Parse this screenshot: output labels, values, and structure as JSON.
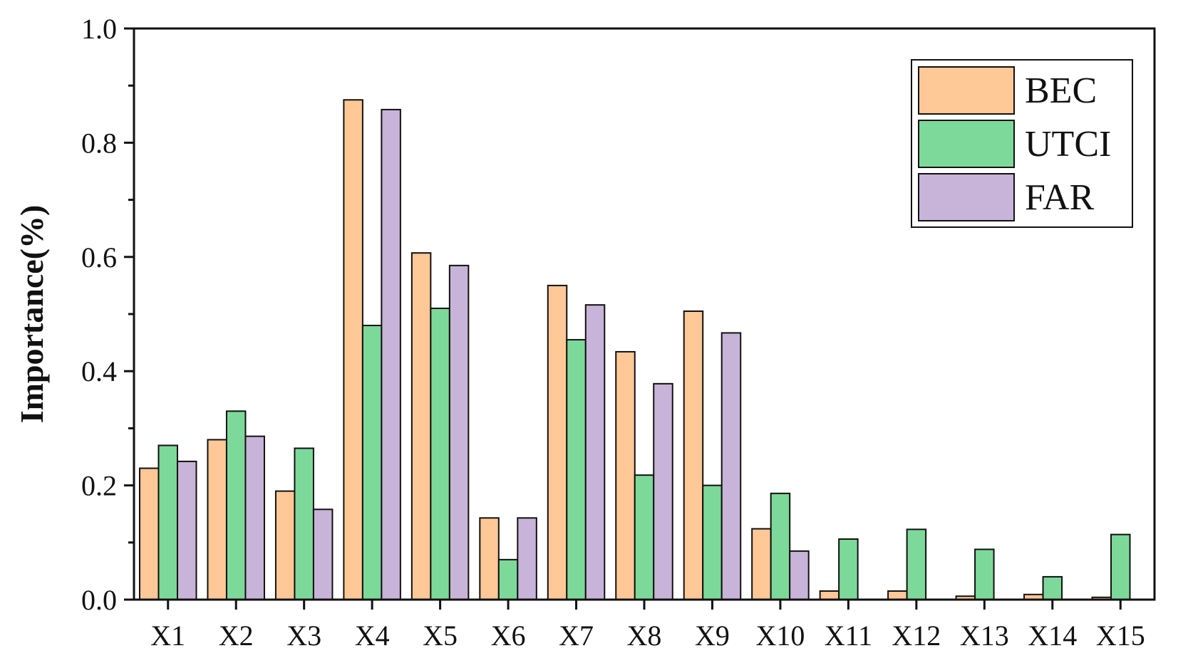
{
  "chart_data": {
    "type": "bar",
    "title": "",
    "xlabel": "",
    "ylabel": "Importance(%)",
    "ylim": [
      0,
      1.0
    ],
    "yticks": [
      "0.0",
      "0.2",
      "0.4",
      "0.6",
      "0.8",
      "1.0"
    ],
    "grid": false,
    "legend_position": "top-right",
    "categories": [
      "X1",
      "X2",
      "X3",
      "X4",
      "X5",
      "X6",
      "X7",
      "X8",
      "X9",
      "X10",
      "X11",
      "X12",
      "X13",
      "X14",
      "X15"
    ],
    "series": [
      {
        "name": "BEC",
        "color": "#FFC896",
        "values": [
          0.23,
          0.28,
          0.19,
          0.875,
          0.607,
          0.143,
          0.55,
          0.434,
          0.505,
          0.124,
          0.015,
          0.015,
          0.006,
          0.009,
          0.004
        ]
      },
      {
        "name": "UTCI",
        "color": "#7DD99A",
        "values": [
          0.27,
          0.33,
          0.265,
          0.48,
          0.51,
          0.07,
          0.455,
          0.218,
          0.2,
          0.186,
          0.106,
          0.123,
          0.088,
          0.04,
          0.114
        ]
      },
      {
        "name": "FAR",
        "color": "#C8B4D8",
        "values": [
          0.242,
          0.286,
          0.158,
          0.858,
          0.585,
          0.143,
          0.516,
          0.378,
          0.467,
          0.085,
          0.0,
          0.0,
          0.0,
          0.0,
          0.0
        ]
      }
    ]
  }
}
